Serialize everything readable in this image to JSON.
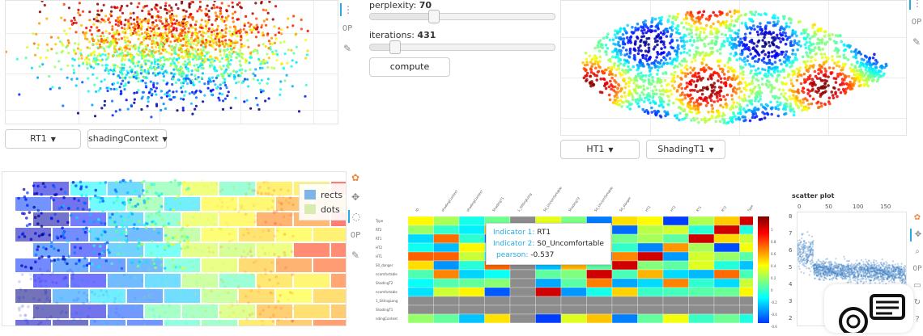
{
  "panel_top_left": {
    "dropdown_x": "RT1",
    "dropdown_color": "shadingContext"
  },
  "tsne_controls": {
    "perplexity_label": "perplexity:",
    "perplexity_value": "70",
    "perplexity_fraction": 0.34,
    "iterations_label": "iterations:",
    "iterations_value": "431",
    "iterations_fraction": 0.13,
    "compute_label": "compute"
  },
  "panel_top_right": {
    "dropdown_x": "HT1",
    "dropdown_color": "ShadingT1"
  },
  "panel_bottom_left": {
    "legend": [
      "rects",
      "dots"
    ],
    "legend_colors": [
      "#7cb6e8",
      "#d8ecb0"
    ]
  },
  "heatmap": {
    "column_labels": [
      "ID",
      "shadingContext",
      "shadingContext",
      "ShadingT1",
      "1_SittingLong",
      "S0_Uncomfortable",
      "ShadingT2",
      "S0_Uncomfortable",
      "S0_danger",
      "HT1",
      "HT2",
      "RT1",
      "RT2",
      "Type"
    ],
    "row_labels": [
      "Type",
      "RT2",
      "RT1",
      "HT2",
      "HT1",
      "S0_danger",
      "ncomfortable",
      "ShadingT2",
      "ncomfortable",
      "1_SittingLong",
      "ShadingT1",
      "ndingContext"
    ],
    "colorbar_ticks": [
      "1",
      "0.8",
      "0.6",
      "0.4",
      "0.2",
      "0",
      "-0.2",
      "-0.4",
      "-0.6"
    ],
    "tooltip": {
      "indicator1_key": "Indicator 1:",
      "indicator1_val": "RT1",
      "indicator2_key": "Indicator 2:",
      "indicator2_val": "S0_Uncomfortable",
      "pearson_key": "pearson:",
      "pearson_val": "-0.537"
    }
  },
  "scatter_small": {
    "title": "scatter plot",
    "x_ticks": [
      "0",
      "50",
      "100",
      "150"
    ],
    "y_ticks": [
      "8",
      "7",
      "6",
      "5",
      "4",
      "3",
      "2"
    ]
  },
  "colors": {
    "accent": "#26aae1",
    "nan_gray": "#8c8c8c"
  }
}
